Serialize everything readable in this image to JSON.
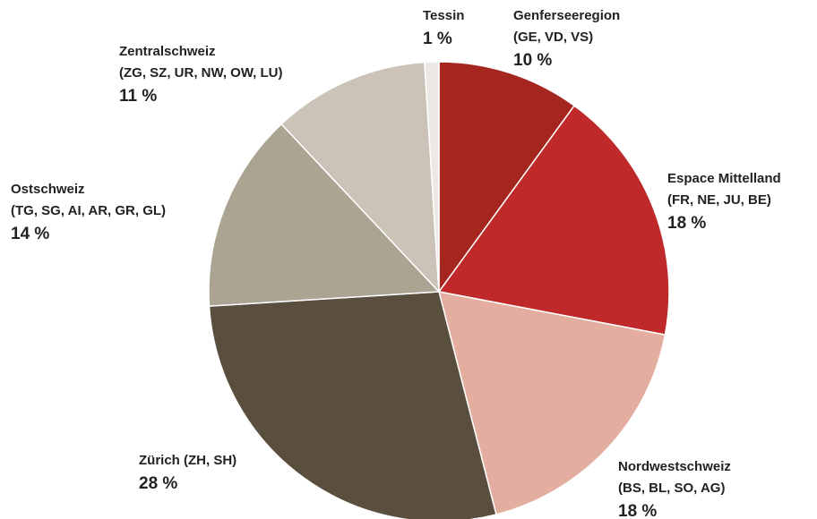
{
  "chart_data": {
    "type": "pie",
    "categories": [
      "Genferseeregion",
      "Espace Mittelland",
      "Nordwestschweiz",
      "Zürich (ZH, SH)",
      "Ostschweiz",
      "Zentralschweiz",
      "Tessin"
    ],
    "cantons": [
      "(GE, VD, VS)",
      "(FR, NE, JU, BE)",
      "(BS, BL, SO, AG)",
      null,
      "(TG, SG, AI, AR, GR, GL)",
      "(ZG, SZ, UR, NW, OW, LU)",
      null
    ],
    "values": [
      10,
      18,
      18,
      28,
      14,
      11,
      1
    ],
    "value_labels": [
      "10 %",
      "18 %",
      "18 %",
      "28 %",
      "14 %",
      "11 %",
      "1 %"
    ],
    "colors": [
      "#a5261f",
      "#c0292a",
      "#e3ae9f",
      "#5a4f3e",
      "#aca493",
      "#cbc3b7",
      "#ece8e3"
    ]
  }
}
